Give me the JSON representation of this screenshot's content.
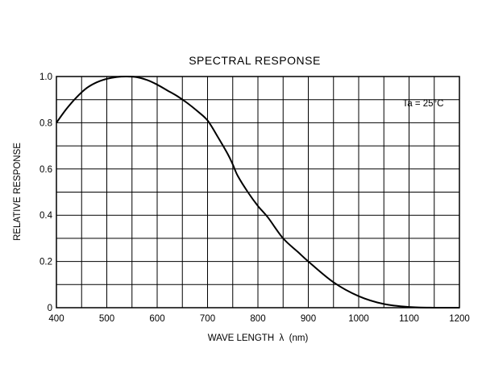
{
  "chart_data": {
    "type": "line",
    "title": "SPECTRAL RESPONSE",
    "xlabel": "WAVE LENGTH  λ  (nm)",
    "ylabel": "RELATIVE RESPONSE",
    "xlim": [
      400,
      1200
    ],
    "ylim": [
      0,
      1.0
    ],
    "x_ticks": [
      "400",
      "500",
      "600",
      "700",
      "800",
      "900",
      "1000",
      "1100",
      "1200"
    ],
    "y_ticks": [
      "0",
      "0.2",
      "0.4",
      "0.6",
      "0.8",
      "1.0"
    ],
    "grid": true,
    "annotation": "Ta = 25°C",
    "series": [
      {
        "x": [
          400,
          420,
          440,
          460,
          480,
          500,
          520,
          540,
          560,
          580,
          600,
          620,
          640,
          660,
          680,
          700,
          720,
          740,
          750,
          760,
          780,
          800,
          820,
          850,
          880,
          900,
          950,
          1000,
          1050,
          1100,
          1150,
          1200
        ],
        "y": [
          0.8,
          0.86,
          0.91,
          0.95,
          0.975,
          0.99,
          0.998,
          1.0,
          0.997,
          0.985,
          0.965,
          0.94,
          0.915,
          0.885,
          0.85,
          0.81,
          0.74,
          0.665,
          0.62,
          0.57,
          0.5,
          0.44,
          0.39,
          0.3,
          0.24,
          0.2,
          0.11,
          0.05,
          0.016,
          0.003,
          0.0,
          0.0
        ]
      }
    ]
  }
}
